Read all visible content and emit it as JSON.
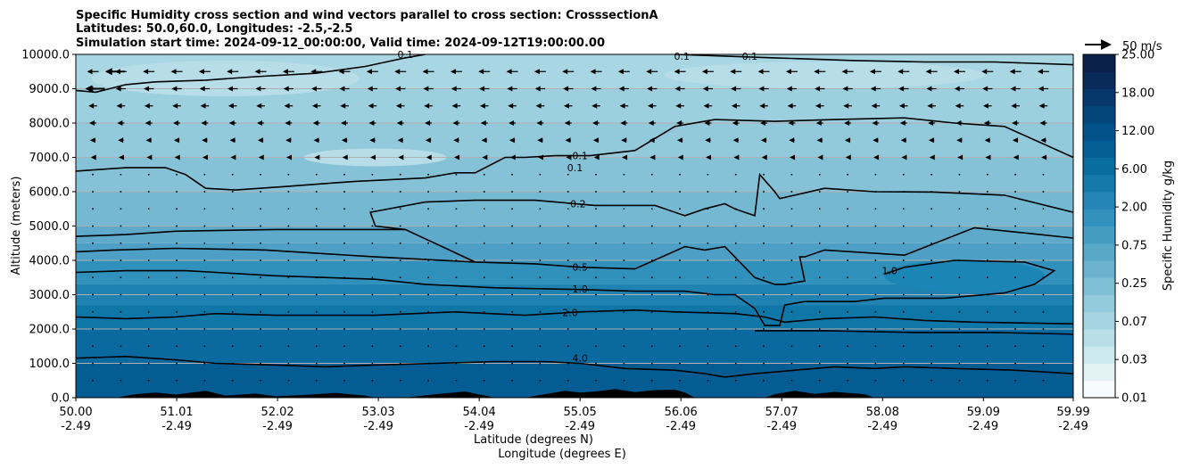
{
  "chart_data": {
    "type": "contour",
    "title_lines": [
      "Specific Humidity cross section and wind vectors parallel to cross section: CrosssectionA",
      "Latitudes: 50.0,60.0, Longitudes: -2.5,-2.5",
      "Simulation start time: 2024-09-12_00:00:00, Valid time: 2024-09-12T19:00:00.00"
    ],
    "ylabel": "Altitude (meters)",
    "xlabel_lat": "Latitude (degrees N)",
    "xlabel_lon": "Longitude (degrees E)",
    "x_range": [
      50.0,
      59.99
    ],
    "ylim": [
      0,
      10000
    ],
    "grid": "horizontal",
    "y_ticks": [
      "0.0",
      "1000.0",
      "2000.0",
      "3000.0",
      "4000.0",
      "5000.0",
      "6000.0",
      "7000.0",
      "8000.0",
      "9000.0",
      "10000.0"
    ],
    "x_ticks": [
      {
        "lat": "50.00",
        "lon": "-2.49"
      },
      {
        "lat": "51.01",
        "lon": "-2.49"
      },
      {
        "lat": "52.02",
        "lon": "-2.49"
      },
      {
        "lat": "53.03",
        "lon": "-2.49"
      },
      {
        "lat": "54.04",
        "lon": "-2.49"
      },
      {
        "lat": "55.05",
        "lon": "-2.49"
      },
      {
        "lat": "56.06",
        "lon": "-2.49"
      },
      {
        "lat": "57.07",
        "lon": "-2.49"
      },
      {
        "lat": "58.08",
        "lon": "-2.49"
      },
      {
        "lat": "59.09",
        "lon": "-2.49"
      },
      {
        "lat": "59.99",
        "lon": "-2.49"
      }
    ],
    "colorbar": {
      "label": "Specific Humidity g/kg",
      "tick_labels": [
        "0.01",
        "0.03",
        "0.07",
        "0.25",
        "0.75",
        "2.00",
        "6.00",
        "12.00",
        "18.00",
        "25.00"
      ],
      "colors": [
        "#f7fbfd",
        "#e3f2f5",
        "#cde8ee",
        "#b8dfe8",
        "#a6d4e1",
        "#93cadc",
        "#7ebfd5",
        "#6bb3cf",
        "#58a8c8",
        "#449cc1",
        "#3391bd",
        "#2585b6",
        "#1579aa",
        "#0b6ca0",
        "#055f96",
        "#03528a",
        "#04457c",
        "#06386b",
        "#082b5a",
        "#0a1f4a"
      ]
    },
    "wind_reference": "50 m/s",
    "contour_labels": [
      {
        "value": "0.1",
        "x": 53.3,
        "z": 10000
      },
      {
        "value": "0.1",
        "x": 55.05,
        "z": 7050
      },
      {
        "value": "0.1",
        "x": 55.0,
        "z": 6700
      },
      {
        "value": "0.1",
        "x": 56.07,
        "z": 9950
      },
      {
        "value": "0.1",
        "x": 56.75,
        "z": 9950
      },
      {
        "value": "0.2",
        "x": 55.03,
        "z": 5650
      },
      {
        "value": "0.5",
        "x": 55.05,
        "z": 3800
      },
      {
        "value": "1.0",
        "x": 55.05,
        "z": 3170
      },
      {
        "value": "1.0",
        "x": 58.15,
        "z": 3700
      },
      {
        "value": "2.0",
        "x": 54.95,
        "z": 2480
      },
      {
        "value": "4.0",
        "x": 55.05,
        "z": 1150
      }
    ],
    "contours": [
      {
        "value": 0.1,
        "points": [
          [
            50.0,
            8950
          ],
          [
            50.2,
            8900
          ],
          [
            50.5,
            9120
          ],
          [
            50.8,
            9200
          ],
          [
            51.3,
            9250
          ],
          [
            51.8,
            9350
          ],
          [
            52.4,
            9450
          ],
          [
            52.9,
            9650
          ],
          [
            53.3,
            9900
          ],
          [
            53.5,
            10000
          ]
        ]
      },
      {
        "value": 0.1,
        "points": [
          [
            56.0,
            10000
          ],
          [
            56.5,
            9950
          ],
          [
            57.0,
            9900
          ],
          [
            57.8,
            9820
          ],
          [
            58.5,
            9780
          ],
          [
            59.2,
            9780
          ],
          [
            59.99,
            9700
          ]
        ]
      },
      {
        "value": 0.1,
        "points": [
          [
            50.0,
            6600
          ],
          [
            50.5,
            6700
          ],
          [
            50.9,
            6700
          ],
          [
            51.1,
            6500
          ],
          [
            51.3,
            6100
          ],
          [
            51.6,
            6050
          ],
          [
            52.1,
            6150
          ],
          [
            52.8,
            6300
          ],
          [
            53.5,
            6400
          ],
          [
            53.8,
            6550
          ],
          [
            54.0,
            6550
          ],
          [
            54.3,
            7000
          ],
          [
            54.5,
            7000
          ],
          [
            54.8,
            7050
          ],
          [
            55.15,
            7050
          ],
          [
            55.6,
            7200
          ],
          [
            56.0,
            7900
          ],
          [
            56.4,
            8100
          ],
          [
            57.0,
            8050
          ],
          [
            57.6,
            8100
          ],
          [
            58.3,
            8150
          ],
          [
            58.8,
            8000
          ],
          [
            59.3,
            7900
          ],
          [
            59.99,
            7000
          ]
        ]
      },
      {
        "value": 0.2,
        "points": [
          [
            53.3,
            4900
          ],
          [
            53.0,
            5000
          ],
          [
            52.95,
            5400
          ],
          [
            53.5,
            5700
          ],
          [
            54.0,
            5750
          ],
          [
            54.6,
            5750
          ],
          [
            55.2,
            5600
          ],
          [
            55.8,
            5600
          ],
          [
            56.1,
            5300
          ],
          [
            56.3,
            5500
          ],
          [
            56.5,
            5650
          ],
          [
            56.6,
            5500
          ],
          [
            56.8,
            5300
          ],
          [
            56.85,
            6500
          ],
          [
            57.0,
            6000
          ],
          [
            57.05,
            5800
          ],
          [
            57.5,
            6100
          ],
          [
            58.0,
            6000
          ],
          [
            58.6,
            5990
          ],
          [
            59.3,
            5900
          ],
          [
            59.99,
            5400
          ]
        ]
      },
      {
        "value": 0.5,
        "points": [
          [
            50.0,
            4700
          ],
          [
            50.5,
            4750
          ],
          [
            51.0,
            4850
          ],
          [
            52.0,
            4900
          ],
          [
            53.3,
            4900
          ],
          [
            54.0,
            3950
          ],
          [
            54.6,
            3900
          ],
          [
            55.05,
            3800
          ],
          [
            55.6,
            3750
          ],
          [
            56.1,
            4400
          ],
          [
            56.3,
            4300
          ],
          [
            56.5,
            4400
          ],
          [
            56.7,
            3800
          ],
          [
            56.8,
            3500
          ],
          [
            57.0,
            3300
          ],
          [
            57.1,
            3300
          ],
          [
            57.3,
            3400
          ],
          [
            57.25,
            4100
          ],
          [
            57.3,
            4100
          ],
          [
            57.5,
            4300
          ],
          [
            58.3,
            4150
          ],
          [
            59.0,
            4950
          ],
          [
            59.99,
            4650
          ]
        ]
      },
      {
        "value": 0.5,
        "points": [
          [
            50.0,
            4250
          ],
          [
            50.4,
            4300
          ],
          [
            51.0,
            4350
          ],
          [
            51.9,
            4300
          ],
          [
            53.0,
            4100
          ],
          [
            54.0,
            3950
          ]
        ]
      },
      {
        "value": 1.0,
        "points": [
          [
            50.0,
            3650
          ],
          [
            50.5,
            3700
          ],
          [
            51.1,
            3700
          ],
          [
            52.0,
            3550
          ],
          [
            53.0,
            3450
          ],
          [
            53.5,
            3300
          ],
          [
            54.2,
            3200
          ],
          [
            55.05,
            3150
          ],
          [
            55.6,
            3100
          ],
          [
            56.1,
            3100
          ],
          [
            56.4,
            3000
          ],
          [
            56.6,
            3000
          ],
          [
            56.8,
            2600
          ],
          [
            56.9,
            2100
          ],
          [
            57.05,
            2100
          ],
          [
            57.1,
            2700
          ],
          [
            57.3,
            2800
          ],
          [
            57.8,
            2800
          ],
          [
            58.1,
            2900
          ],
          [
            58.3,
            2900
          ],
          [
            58.7,
            2900
          ],
          [
            59.3,
            3050
          ],
          [
            59.6,
            3300
          ],
          [
            59.8,
            3700
          ],
          [
            59.5,
            3950
          ],
          [
            58.8,
            4000
          ],
          [
            58.3,
            3800
          ],
          [
            58.1,
            3600
          ]
        ]
      },
      {
        "value": 2.0,
        "points": [
          [
            50.0,
            2350
          ],
          [
            50.5,
            2300
          ],
          [
            51.0,
            2350
          ],
          [
            51.4,
            2450
          ],
          [
            52.0,
            2400
          ],
          [
            53.0,
            2400
          ],
          [
            53.8,
            2500
          ],
          [
            54.5,
            2400
          ],
          [
            55.05,
            2500
          ],
          [
            55.6,
            2550
          ],
          [
            56.0,
            2500
          ],
          [
            56.6,
            2450
          ],
          [
            56.9,
            2350
          ],
          [
            57.1,
            2200
          ],
          [
            57.5,
            2300
          ],
          [
            58.0,
            2350
          ],
          [
            58.5,
            2250
          ],
          [
            59.0,
            2200
          ],
          [
            59.99,
            2150
          ]
        ]
      },
      {
        "value": 2.0,
        "points": [
          [
            56.8,
            1950
          ],
          [
            57.5,
            1950
          ],
          [
            58.4,
            1900
          ],
          [
            59.2,
            1900
          ],
          [
            59.99,
            1850
          ]
        ]
      },
      {
        "value": 4.0,
        "points": [
          [
            50.0,
            1150
          ],
          [
            50.5,
            1200
          ],
          [
            51.0,
            1100
          ],
          [
            51.4,
            1000
          ],
          [
            52.0,
            950
          ],
          [
            52.5,
            900
          ],
          [
            53.0,
            950
          ],
          [
            53.6,
            1000
          ],
          [
            54.2,
            1050
          ],
          [
            54.7,
            1050
          ],
          [
            55.05,
            1000
          ],
          [
            55.5,
            850
          ],
          [
            56.0,
            800
          ],
          [
            56.3,
            700
          ],
          [
            56.5,
            600
          ],
          [
            56.8,
            700
          ],
          [
            57.2,
            800
          ],
          [
            57.6,
            900
          ],
          [
            58.0,
            850
          ],
          [
            58.3,
            900
          ],
          [
            58.8,
            850
          ],
          [
            59.4,
            800
          ],
          [
            59.99,
            700
          ]
        ]
      }
    ],
    "terrain": [
      [
        50.0,
        0
      ],
      [
        50.4,
        0
      ],
      [
        50.6,
        100
      ],
      [
        50.8,
        150
      ],
      [
        51.0,
        90
      ],
      [
        51.3,
        200
      ],
      [
        51.5,
        60
      ],
      [
        51.8,
        120
      ],
      [
        52.0,
        40
      ],
      [
        52.3,
        80
      ],
      [
        52.6,
        140
      ],
      [
        52.9,
        60
      ],
      [
        53.0,
        0
      ],
      [
        53.3,
        0
      ],
      [
        53.6,
        100
      ],
      [
        53.9,
        180
      ],
      [
        54.1,
        60
      ],
      [
        54.2,
        0
      ],
      [
        54.5,
        0
      ],
      [
        54.7,
        100
      ],
      [
        54.9,
        200
      ],
      [
        55.05,
        150
      ],
      [
        55.2,
        180
      ],
      [
        55.4,
        250
      ],
      [
        55.6,
        160
      ],
      [
        55.8,
        220
      ],
      [
        56.0,
        230
      ],
      [
        56.1,
        150
      ],
      [
        56.2,
        0
      ],
      [
        56.9,
        0
      ],
      [
        57.0,
        100
      ],
      [
        57.2,
        200
      ],
      [
        57.4,
        110
      ],
      [
        57.6,
        170
      ],
      [
        57.9,
        100
      ],
      [
        58.0,
        0
      ],
      [
        59.99,
        0
      ]
    ],
    "wind_vectors_u": [
      {
        "z": 9500,
        "x_start": 50.4,
        "u": -2.0
      },
      {
        "z": 9000,
        "x_start": 50.2,
        "u": -1.5
      }
    ]
  }
}
